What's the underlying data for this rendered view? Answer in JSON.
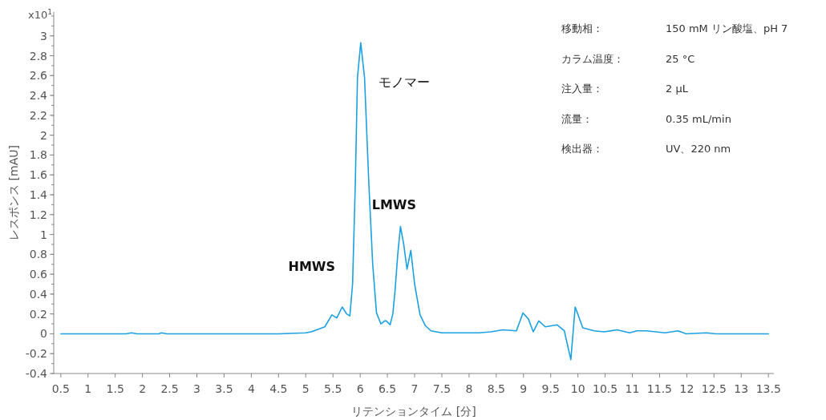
{
  "chart_data": {
    "type": "line",
    "xlabel": "リテンションタイム [分]",
    "ylabel": "レスポンス [mAU]",
    "xlim": [
      0.37,
      13.6
    ],
    "ylim": [
      -0.4,
      3.24
    ],
    "xticks": [
      0.5,
      1,
      1.5,
      2,
      2.5,
      3,
      3.5,
      4,
      4.5,
      5,
      5.5,
      6,
      6.5,
      7,
      7.5,
      8,
      8.5,
      9,
      9.5,
      10,
      10.5,
      11,
      11.5,
      12,
      12.5,
      13,
      13.5
    ],
    "yticks": [
      -0.4,
      -0.2,
      0,
      0.2,
      0.4,
      0.6,
      0.8,
      1,
      1.2,
      1.4,
      1.6,
      1.8,
      2,
      2.2,
      2.4,
      2.6,
      2.8,
      3
    ],
    "grid": false,
    "marker": "none",
    "line_style": "solid",
    "series": [
      {
        "color": "#1ba1e2",
        "x": [
          0.5,
          1.0,
          1.5,
          1.7,
          1.8,
          1.9,
          2.1,
          2.3,
          2.35,
          2.45,
          2.6,
          3.0,
          3.5,
          4.0,
          4.5,
          5.0,
          5.1,
          5.2,
          5.35,
          5.48,
          5.57,
          5.67,
          5.75,
          5.81,
          5.86,
          5.91,
          5.95,
          6.01,
          6.08,
          6.16,
          6.23,
          6.3,
          6.38,
          6.45,
          6.48,
          6.55,
          6.6,
          6.64,
          6.69,
          6.74,
          6.8,
          6.86,
          6.93,
          7.0,
          7.1,
          7.2,
          7.3,
          7.5,
          8.0,
          8.18,
          8.4,
          8.62,
          8.87,
          8.99,
          9.09,
          9.18,
          9.28,
          9.4,
          9.62,
          9.75,
          9.87,
          9.95,
          10.09,
          10.3,
          10.48,
          10.72,
          10.95,
          11.08,
          11.26,
          11.6,
          11.84,
          11.99,
          12.36,
          12.53,
          13.0,
          13.5
        ],
        "values": [
          0,
          0,
          0,
          0,
          0.01,
          0,
          0,
          0,
          0.01,
          0,
          0,
          0,
          0,
          0,
          0,
          0.01,
          0.02,
          0.04,
          0.07,
          0.19,
          0.16,
          0.27,
          0.2,
          0.18,
          0.5,
          1.5,
          2.58,
          2.93,
          2.58,
          1.5,
          0.7,
          0.21,
          0.1,
          0.13,
          0.13,
          0.09,
          0.2,
          0.43,
          0.8,
          1.08,
          0.9,
          0.65,
          0.84,
          0.5,
          0.19,
          0.08,
          0.03,
          0.01,
          0.01,
          0.01,
          0.02,
          0.04,
          0.03,
          0.21,
          0.15,
          0.02,
          0.13,
          0.07,
          0.09,
          0.03,
          -0.26,
          0.27,
          0.06,
          0.03,
          0.02,
          0.04,
          0.01,
          0.03,
          0.03,
          0.01,
          0.03,
          0,
          0.01,
          0,
          0,
          0
        ]
      }
    ],
    "annotations": [
      "x10$^{1}$",
      {
        "text": "HMWS",
        "x": 5.67,
        "y": 0.27
      },
      {
        "text": "モノマー",
        "x": 6.01,
        "y": 2.93
      },
      {
        "text": "LMWS",
        "x": 6.74,
        "y": 1.08
      },
      "移動相：",
      "150 mM リン酸塩、pH 7",
      "カラム温度：",
      "25 °C",
      "注入量：",
      "2 µL",
      "流量：",
      "0.35 mL/min",
      "検出器：",
      "UV、220 nm"
    ]
  }
}
